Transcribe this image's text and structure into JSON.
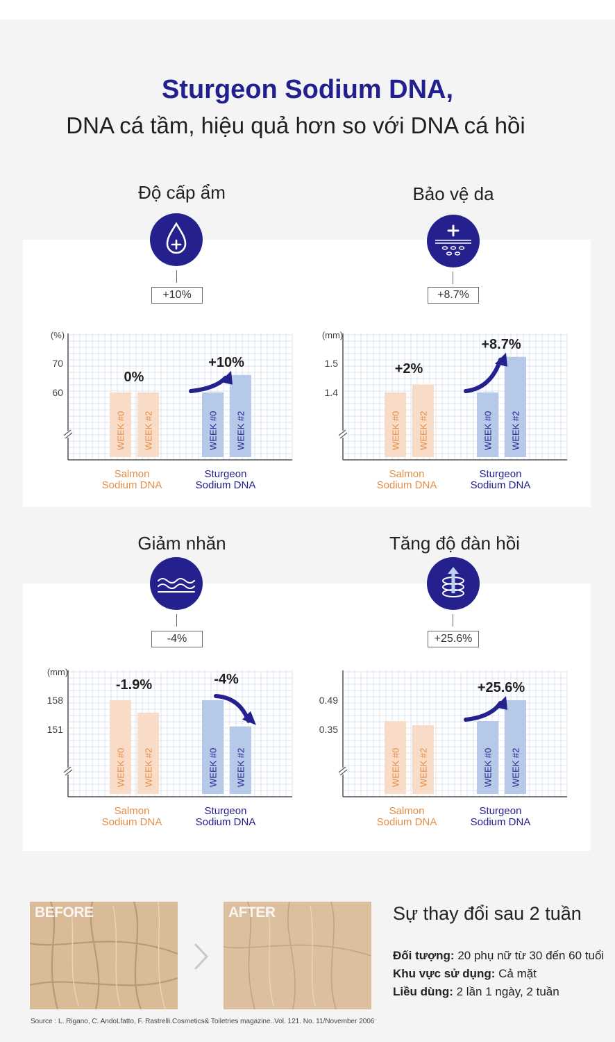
{
  "header": {
    "title": "Sturgeon Sodium DNA,",
    "subtitle": "DNA cá tầm, hiệu quả hơn so với DNA cá hồi"
  },
  "colors": {
    "navy": "#24208d",
    "salmon_bar": "#f8dcc7",
    "salmon_text": "#e48e46",
    "sturgeon_bar": "#b7c9e8",
    "sturgeon_text": "#24208d",
    "grid": "#dbe3f1"
  },
  "metrics": [
    {
      "title": "Độ cấp ẩm",
      "icon": "water-drop-plus-icon",
      "improvement": "+10%"
    },
    {
      "title": "Bảo vệ da",
      "icon": "skin-shield-plus-icon",
      "improvement": "+8.7%"
    },
    {
      "title": "Giảm nhăn",
      "icon": "wrinkle-waves-icon",
      "improvement": "-4%"
    },
    {
      "title": "Tăng độ đàn hồi",
      "icon": "elastic-rings-arrow-icon",
      "improvement": "+25.6%"
    }
  ],
  "chart_data": [
    {
      "type": "bar",
      "unit": "(%)",
      "yticks": [
        60,
        70
      ],
      "categories": [
        "Salmon Sodium DNA",
        "Sturgeon Sodium DNA"
      ],
      "series": [
        {
          "name": "WEEK #0",
          "values": [
            60,
            60
          ]
        },
        {
          "name": "WEEK #2",
          "values": [
            60,
            66
          ]
        }
      ],
      "group_change_labels": [
        "0%",
        "+10%"
      ],
      "trend": "up"
    },
    {
      "type": "bar",
      "unit": "(mm)",
      "yticks": [
        1.4,
        1.5
      ],
      "categories": [
        "Salmon Sodium DNA",
        "Sturgeon Sodium DNA"
      ],
      "series": [
        {
          "name": "WEEK #0",
          "values": [
            1.4,
            1.4
          ]
        },
        {
          "name": "WEEK #2",
          "values": [
            1.428,
            1.522
          ]
        }
      ],
      "group_change_labels": [
        "+2%",
        "+8.7%"
      ],
      "trend": "up"
    },
    {
      "type": "bar",
      "unit": "(mm)",
      "yticks": [
        151,
        158
      ],
      "categories": [
        "Salmon Sodium DNA",
        "Sturgeon Sodium DNA"
      ],
      "series": [
        {
          "name": "WEEK #0",
          "values": [
            158,
            158
          ]
        },
        {
          "name": "WEEK #2",
          "values": [
            155,
            151.7
          ]
        }
      ],
      "group_change_labels": [
        "-1.9%",
        "-4%"
      ],
      "trend": "down"
    },
    {
      "type": "bar",
      "unit": "",
      "yticks": [
        0.35,
        0.49
      ],
      "categories": [
        "Salmon Sodium DNA",
        "Sturgeon Sodium DNA"
      ],
      "series": [
        {
          "name": "WEEK #0",
          "values": [
            0.39,
            0.39
          ]
        },
        {
          "name": "WEEK #2",
          "values": [
            0.37,
            0.49
          ]
        }
      ],
      "group_change_labels": [
        "",
        "+25.6%"
      ],
      "trend": "up"
    }
  ],
  "category_lines": {
    "salmon": [
      "Salmon",
      "Sodium DNA"
    ],
    "sturgeon": [
      "Sturgeon",
      "Sodium DNA"
    ]
  },
  "results": {
    "before_label": "BEFORE",
    "after_label": "AFTER",
    "title": "Sự thay đổi sau 2 tuần",
    "subject_label": "Đối tượng:",
    "subject_value": "20 phụ nữ từ 30 đến 60 tuổi",
    "area_label": "Khu vực sử dụng:",
    "area_value": "Cả mặt",
    "dosage_label": "Liều dùng:",
    "dosage_value": "2 lần 1 ngày, 2 tuần"
  },
  "source": "Source : L. Rigano, C. AndoLfatto, F. Rastrelli.Cosmetics& Toiletries magazine..Vol. 121. No. 11/November 2006"
}
